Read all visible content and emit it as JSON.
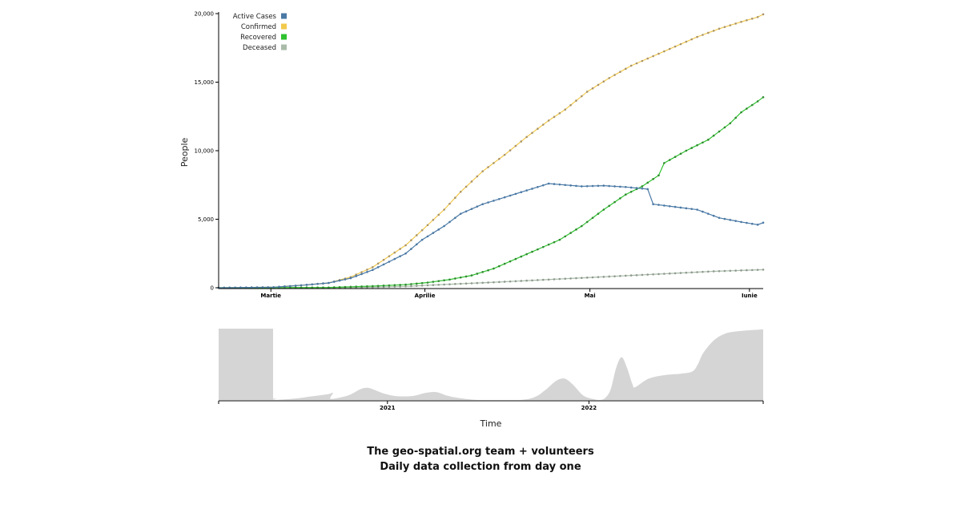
{
  "chart_data": [
    {
      "type": "line",
      "ylabel": "People",
      "ylim": [
        0,
        20000
      ],
      "yticks": [
        "0",
        "5,000",
        "10,000",
        "15,000",
        "20,000"
      ],
      "x_labels": [
        "Martie",
        "Aprilie",
        "Mai",
        "Iunie"
      ],
      "x_label_positions": [
        9.5,
        37.5,
        67.5,
        96.5
      ],
      "grid": false,
      "legend_position": "top-left",
      "n_points": 100,
      "series": [
        {
          "name": "Active Cases",
          "color": "#4a79a5",
          "points": [
            [
              0,
              0
            ],
            [
              10,
              40
            ],
            [
              15,
              180
            ],
            [
              20,
              350
            ],
            [
              24,
              700
            ],
            [
              28,
              1300
            ],
            [
              31,
              1900
            ],
            [
              34,
              2500
            ],
            [
              37,
              3500
            ],
            [
              41,
              4500
            ],
            [
              44,
              5400
            ],
            [
              48,
              6100
            ],
            [
              52,
              6600
            ],
            [
              56,
              7100
            ],
            [
              60,
              7600
            ],
            [
              63,
              7500
            ],
            [
              66,
              7400
            ],
            [
              70,
              7450
            ],
            [
              74,
              7350
            ],
            [
              78,
              7200
            ],
            [
              79,
              6100
            ],
            [
              83,
              5900
            ],
            [
              87,
              5700
            ],
            [
              91,
              5100
            ],
            [
              95,
              4800
            ],
            [
              98,
              4600
            ],
            [
              99,
              4750
            ]
          ]
        },
        {
          "name": "Confirmed",
          "color": "#f2c94c",
          "points": [
            [
              0,
              0
            ],
            [
              10,
              40
            ],
            [
              15,
              180
            ],
            [
              20,
              350
            ],
            [
              24,
              780
            ],
            [
              28,
              1500
            ],
            [
              31,
              2300
            ],
            [
              34,
              3100
            ],
            [
              37,
              4200
            ],
            [
              41,
              5700
            ],
            [
              44,
              7000
            ],
            [
              48,
              8500
            ],
            [
              52,
              9700
            ],
            [
              56,
              11000
            ],
            [
              60,
              12200
            ],
            [
              63,
              13000
            ],
            [
              67,
              14300
            ],
            [
              71,
              15300
            ],
            [
              75,
              16200
            ],
            [
              79,
              16900
            ],
            [
              83,
              17600
            ],
            [
              87,
              18300
            ],
            [
              91,
              18900
            ],
            [
              95,
              19400
            ],
            [
              98,
              19750
            ],
            [
              99,
              19950
            ]
          ]
        },
        {
          "name": "Recovered",
          "color": "#2ec22e",
          "points": [
            [
              0,
              0
            ],
            [
              20,
              20
            ],
            [
              28,
              120
            ],
            [
              34,
              230
            ],
            [
              38,
              380
            ],
            [
              42,
              600
            ],
            [
              46,
              900
            ],
            [
              50,
              1400
            ],
            [
              54,
              2100
            ],
            [
              58,
              2800
            ],
            [
              62,
              3500
            ],
            [
              66,
              4500
            ],
            [
              70,
              5700
            ],
            [
              74,
              6800
            ],
            [
              77,
              7400
            ],
            [
              80,
              8200
            ],
            [
              81,
              9100
            ],
            [
              85,
              10000
            ],
            [
              89,
              10800
            ],
            [
              93,
              12000
            ],
            [
              95,
              12800
            ],
            [
              98,
              13600
            ],
            [
              99,
              13900
            ]
          ]
        },
        {
          "name": "Deceased",
          "color": "#aabca9",
          "points": [
            [
              0,
              0
            ],
            [
              20,
              5
            ],
            [
              28,
              40
            ],
            [
              34,
              100
            ],
            [
              40,
              220
            ],
            [
              50,
              400
            ],
            [
              60,
              600
            ],
            [
              70,
              800
            ],
            [
              80,
              1000
            ],
            [
              90,
              1200
            ],
            [
              99,
              1320
            ]
          ]
        }
      ]
    },
    {
      "type": "area",
      "xlabel": "Time",
      "x_labels": [
        "2021",
        "2022"
      ],
      "x_label_positions": [
        0.31,
        0.68
      ],
      "color": "#d5d5d5",
      "selection_brush": [
        0,
        0.1
      ],
      "values_relative": [
        [
          0,
          0.02
        ],
        [
          0.1,
          0.02
        ],
        [
          0.1,
          0.0
        ],
        [
          0.14,
          0.02
        ],
        [
          0.17,
          0.05
        ],
        [
          0.2,
          0.08
        ],
        [
          0.21,
          0.1
        ],
        [
          0.205,
          0.02
        ],
        [
          0.22,
          0.03
        ],
        [
          0.24,
          0.07
        ],
        [
          0.26,
          0.15
        ],
        [
          0.27,
          0.17
        ],
        [
          0.28,
          0.16
        ],
        [
          0.3,
          0.1
        ],
        [
          0.32,
          0.06
        ],
        [
          0.34,
          0.05
        ],
        [
          0.36,
          0.06
        ],
        [
          0.38,
          0.1
        ],
        [
          0.4,
          0.11
        ],
        [
          0.42,
          0.06
        ],
        [
          0.44,
          0.03
        ],
        [
          0.48,
          0.0
        ],
        [
          0.55,
          0.0
        ],
        [
          0.58,
          0.04
        ],
        [
          0.6,
          0.14
        ],
        [
          0.62,
          0.27
        ],
        [
          0.635,
          0.3
        ],
        [
          0.65,
          0.22
        ],
        [
          0.67,
          0.06
        ],
        [
          0.69,
          0.01
        ],
        [
          0.7,
          0.0
        ],
        [
          0.71,
          0.03
        ],
        [
          0.72,
          0.15
        ],
        [
          0.73,
          0.45
        ],
        [
          0.74,
          0.6
        ],
        [
          0.75,
          0.45
        ],
        [
          0.76,
          0.22
        ],
        [
          0.765,
          0.18
        ],
        [
          0.79,
          0.3
        ],
        [
          0.82,
          0.35
        ],
        [
          0.85,
          0.37
        ],
        [
          0.87,
          0.4
        ],
        [
          0.88,
          0.5
        ],
        [
          0.89,
          0.66
        ],
        [
          0.91,
          0.84
        ],
        [
          0.93,
          0.93
        ],
        [
          0.95,
          0.96
        ],
        [
          0.98,
          0.98
        ],
        [
          1.0,
          0.99
        ]
      ]
    }
  ],
  "legend": {
    "items": [
      {
        "label": "Active Cases",
        "color": "#4a79a5"
      },
      {
        "label": "Confirmed",
        "color": "#f2c94c"
      },
      {
        "label": "Recovered",
        "color": "#2ec22e"
      },
      {
        "label": "Deceased",
        "color": "#aabca9"
      }
    ]
  },
  "footer": {
    "line1": "The geo-spatial.org team + volunteers",
    "line2": "Daily data collection from day one"
  }
}
